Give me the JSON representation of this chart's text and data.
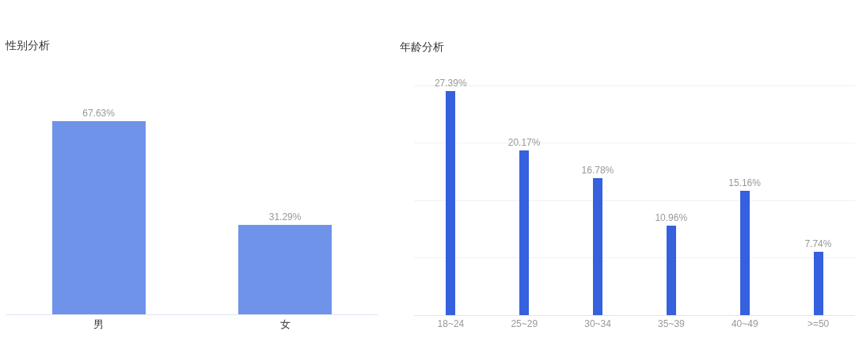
{
  "chart_data": [
    {
      "type": "bar",
      "title": "性别分析",
      "categories": [
        "男",
        "女"
      ],
      "values": [
        67.63,
        31.29
      ],
      "color": "#6f93e8",
      "value_labels": [
        "67.63%",
        "31.29%"
      ],
      "tick_labels": "x"
    },
    {
      "type": "bar",
      "title": "年龄分析",
      "categories": [
        "18~24",
        "25~29",
        "30~34",
        "35~39",
        "40~49",
        ">=50"
      ],
      "values": [
        27.39,
        20.17,
        16.78,
        10.96,
        15.16,
        7.74
      ],
      "color": "#3560de",
      "value_labels": [
        "27.39%",
        "20.17%",
        "16.78%",
        "10.96%",
        "15.16%",
        "7.74%"
      ],
      "yticks": [
        {
          "value": 0,
          "label": null
        },
        {
          "value": 7,
          "label": null
        },
        {
          "value": 14,
          "label": null
        },
        {
          "value": 21,
          "label": null
        },
        {
          "value": 28,
          "label": null
        }
      ],
      "grid": "y",
      "tick_labels": "x"
    }
  ]
}
